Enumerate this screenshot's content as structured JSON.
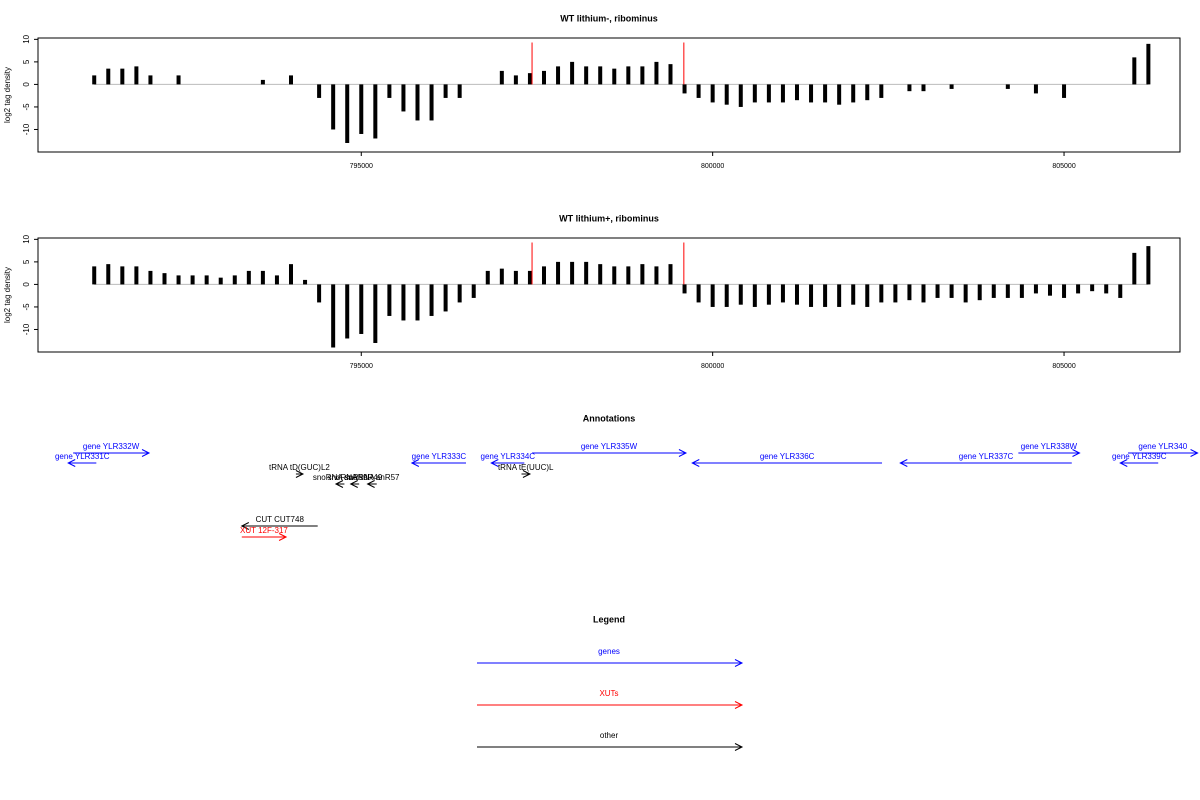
{
  "chart_data": [
    {
      "type": "bar",
      "title": "WT lithium-, ribominus",
      "ylabel": "log2 tag density",
      "color": "#000000",
      "baseline_color": "#bbbbbb",
      "xlim": [
        790400,
        806650
      ],
      "ylim": [
        -15,
        10.3
      ],
      "xticks": [
        795000,
        800000,
        805000
      ],
      "yticks": [
        10,
        5,
        0,
        -5,
        -10
      ],
      "x": [
        791200,
        791400,
        791600,
        791800,
        792000,
        792200,
        792400,
        792600,
        792800,
        793000,
        793200,
        793400,
        793600,
        793800,
        794000,
        794200,
        794400,
        794600,
        794800,
        795000,
        795200,
        795400,
        795600,
        795800,
        796000,
        796200,
        796400,
        796600,
        796800,
        797000,
        797200,
        797400,
        797600,
        797800,
        798000,
        798200,
        798400,
        798600,
        798800,
        799000,
        799200,
        799400,
        799600,
        799800,
        800000,
        800200,
        800400,
        800600,
        800800,
        801000,
        801200,
        801400,
        801600,
        801800,
        802000,
        802200,
        802400,
        802600,
        802800,
        803000,
        803200,
        803400,
        803600,
        803800,
        804000,
        804200,
        804400,
        804600,
        804800,
        805000,
        805200,
        805400,
        805600,
        805800,
        806000,
        806200
      ],
      "values": [
        2,
        3.5,
        3.5,
        4,
        2,
        0,
        2,
        0,
        0,
        0,
        0,
        0,
        1,
        0,
        2,
        0,
        -3,
        -10,
        -13,
        -11,
        -12,
        -3,
        -6,
        -8,
        -8,
        -3,
        -3,
        0,
        0,
        3,
        2,
        2.5,
        3,
        4,
        5,
        4,
        4,
        3.5,
        4,
        4,
        5,
        4.5,
        -2,
        -3,
        -4,
        -4.5,
        -5,
        -4,
        -4,
        -4,
        -3.5,
        -4,
        -4,
        -4.5,
        -4,
        -3.5,
        -3,
        0,
        -1.5,
        -1.5,
        0,
        -1,
        0,
        0,
        0,
        -1,
        0,
        -2,
        0,
        -3,
        0,
        0,
        0,
        0,
        6,
        9
      ],
      "highlight": {
        "color": "#ff0000",
        "x": [
          797430,
          799590
        ],
        "values": [
          9.3,
          9.3
        ]
      }
    },
    {
      "type": "bar",
      "title": "WT lithium+, ribominus",
      "ylabel": "log2 tag density",
      "color": "#000000",
      "baseline_color": "#bbbbbb",
      "xlim": [
        790400,
        806650
      ],
      "ylim": [
        -15,
        10.3
      ],
      "xticks": [
        795000,
        800000,
        805000
      ],
      "yticks": [
        10,
        5,
        0,
        -5,
        -10
      ],
      "x": [
        791200,
        791400,
        791600,
        791800,
        792000,
        792200,
        792400,
        792600,
        792800,
        793000,
        793200,
        793400,
        793600,
        793800,
        794000,
        794200,
        794400,
        794600,
        794800,
        795000,
        795200,
        795400,
        795600,
        795800,
        796000,
        796200,
        796400,
        796600,
        796800,
        797000,
        797200,
        797400,
        797600,
        797800,
        798000,
        798200,
        798400,
        798600,
        798800,
        799000,
        799200,
        799400,
        799600,
        799800,
        800000,
        800200,
        800400,
        800600,
        800800,
        801000,
        801200,
        801400,
        801600,
        801800,
        802000,
        802200,
        802400,
        802600,
        802800,
        803000,
        803200,
        803400,
        803600,
        803800,
        804000,
        804200,
        804400,
        804600,
        804800,
        805000,
        805200,
        805400,
        805600,
        805800,
        806000,
        806200
      ],
      "values": [
        4,
        4.5,
        4,
        4,
        3,
        2.5,
        2,
        2,
        2,
        1.5,
        2,
        3,
        3,
        2,
        4.5,
        1,
        -4,
        -14,
        -12,
        -11,
        -13,
        -7,
        -8,
        -8,
        -7,
        -6,
        -4,
        -3,
        3,
        3.5,
        3,
        3,
        4,
        5,
        5,
        5,
        4.5,
        4,
        4,
        4.5,
        4,
        4.5,
        -2,
        -4,
        -5,
        -5,
        -4.5,
        -5,
        -4.5,
        -4,
        -4.5,
        -5,
        -5,
        -5,
        -4.5,
        -5,
        -4,
        -4,
        -3.5,
        -4,
        -3,
        -3,
        -4,
        -3.5,
        -3,
        -3,
        -3,
        -2,
        -2.5,
        -3,
        -2,
        -1.5,
        -2,
        -3,
        7,
        8.5
      ],
      "highlight": {
        "color": "#ff0000",
        "x": [
          797430,
          799590
        ],
        "values": [
          9.3,
          9.3
        ]
      }
    }
  ],
  "annotations": {
    "title": "Annotations",
    "items": [
      {
        "label": "gene YLR332W",
        "color": "#0000ff",
        "strand": "+",
        "start": 790900,
        "end": 791980
      },
      {
        "label": "gene YLR331C",
        "color": "#0000ff",
        "strand": "-",
        "start": 790830,
        "end": 791230
      },
      {
        "label": "tRNA tD(GUC)L2",
        "color": "#000000",
        "strand": "+",
        "start": 794070,
        "end": 794170
      },
      {
        "label": "snoRNA snR59",
        "color": "#000000",
        "strand": "-",
        "start": 794640,
        "end": 794760
      },
      {
        "label": "snoRNA snR49",
        "color": "#000000",
        "strand": "-",
        "start": 794850,
        "end": 794970
      },
      {
        "label": "snoRNA snR57",
        "color": "#000000",
        "strand": "-",
        "start": 795090,
        "end": 795220
      },
      {
        "label": "CUT CUT748",
        "color": "#000000",
        "strand": "-",
        "start": 793300,
        "end": 794380
      },
      {
        "label": "XUT 12F-317",
        "color": "#ff0000",
        "strand": "+",
        "start": 793300,
        "end": 793930
      },
      {
        "label": "gene YLR333C",
        "color": "#0000ff",
        "strand": "-",
        "start": 795720,
        "end": 796490
      },
      {
        "label": "gene YLR334C",
        "color": "#0000ff",
        "strand": "-",
        "start": 796850,
        "end": 797320
      },
      {
        "label": "tRNA tE(UUC)L",
        "color": "#000000",
        "strand": "+",
        "start": 797280,
        "end": 797400
      },
      {
        "label": "gene YLR335W",
        "color": "#0000ff",
        "strand": "+",
        "start": 797430,
        "end": 799620
      },
      {
        "label": "gene YLR336C",
        "color": "#0000ff",
        "strand": "-",
        "start": 799710,
        "end": 802410
      },
      {
        "label": "gene YLR337C",
        "color": "#0000ff",
        "strand": "-",
        "start": 802670,
        "end": 805110
      },
      {
        "label": "gene YLR338W",
        "color": "#0000ff",
        "strand": "+",
        "start": 804350,
        "end": 805220
      },
      {
        "label": "gene YLR339C",
        "color": "#0000ff",
        "strand": "-",
        "start": 805800,
        "end": 806340
      },
      {
        "label": "gene YLR340",
        "color": "#0000ff",
        "strand": "+",
        "start": 805910,
        "end": 806900
      }
    ]
  },
  "legend": {
    "title": "Legend",
    "items": [
      {
        "label": "genes",
        "color": "#0000ff"
      },
      {
        "label": "XUTs",
        "color": "#ff0000"
      },
      {
        "label": "other",
        "color": "#000000"
      }
    ]
  }
}
